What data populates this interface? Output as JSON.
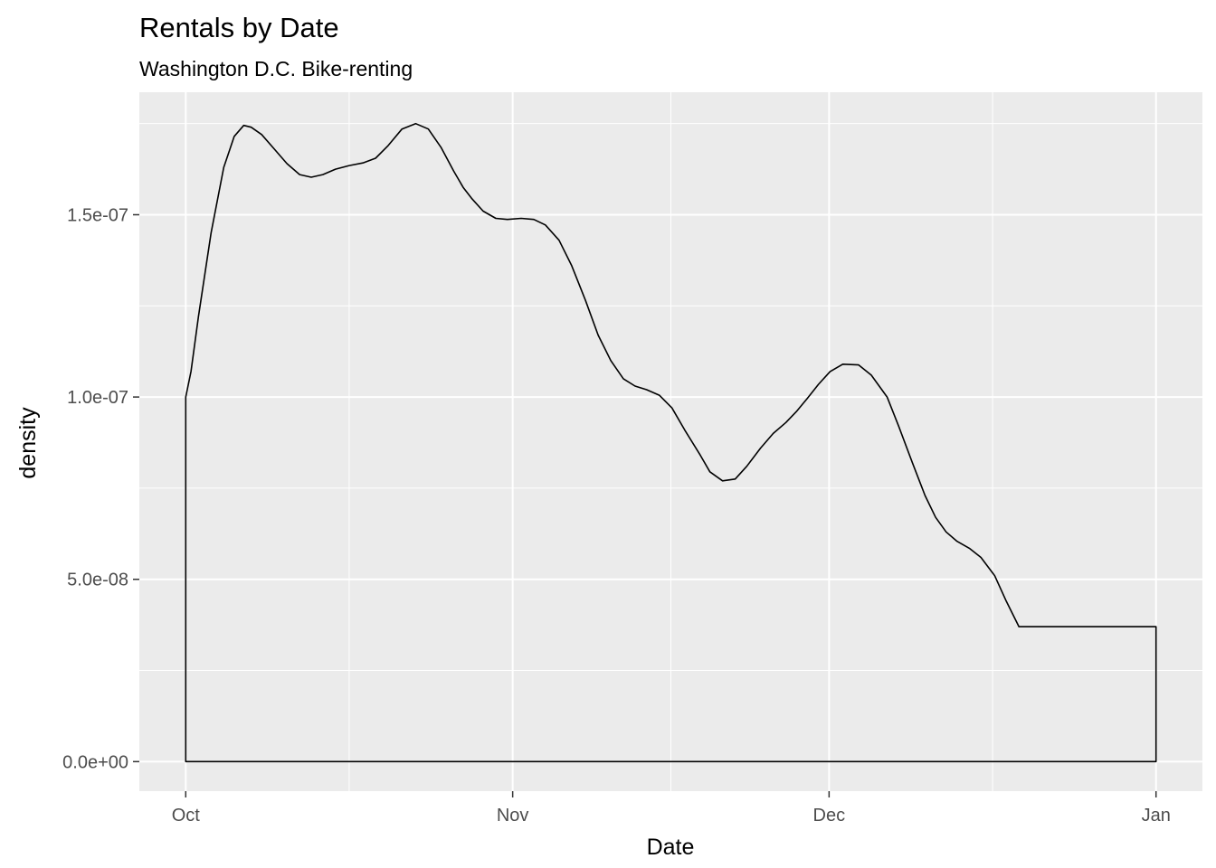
{
  "chart_data": {
    "type": "area",
    "title": "Rentals by Date",
    "subtitle": "Washington D.C. Bike-renting",
    "xlabel": "Date",
    "ylabel": "density",
    "x_ticks": [
      {
        "label": "Oct",
        "day": 0
      },
      {
        "label": "Nov",
        "day": 31
      },
      {
        "label": "Dec",
        "day": 61
      },
      {
        "label": "Jan",
        "day": 92
      }
    ],
    "x_minor_days": [
      15.5,
      46,
      76.5
    ],
    "xlim": [
      -4.4,
      96.4
    ],
    "y_ticks": [
      {
        "label": "0.0e+00",
        "value": 0
      },
      {
        "label": "5.0e-08",
        "value": 5e-08
      },
      {
        "label": "1.0e-07",
        "value": 1e-07
      },
      {
        "label": "1.5e-07",
        "value": 1.5e-07
      }
    ],
    "y_minor": [
      2.5e-08,
      7.5e-08,
      1.25e-07,
      1.75e-07
    ],
    "ylim": [
      -8.1e-09,
      1.836e-07
    ],
    "grid": true,
    "legend": "none",
    "fill": "none",
    "line_color": "#000000",
    "panel_color": "#ebebeb",
    "grid_color": "#ffffff",
    "series": [
      {
        "x": [
          0,
          0.5,
          1.2,
          2.4,
          3.6,
          4.6,
          5.5,
          6.2,
          7.2,
          8.4,
          9.6,
          10.8,
          11.9,
          13.0,
          14.2,
          15.5,
          16.8,
          18.0,
          19.2,
          20.5,
          21.8,
          23.0,
          24.2,
          25.4,
          26.3,
          27.1,
          28.2,
          29.4,
          30.5,
          31.8,
          33.0,
          34.1,
          35.4,
          36.6,
          37.9,
          39.1,
          40.3,
          41.5,
          42.6,
          43.7,
          44.9,
          46.1,
          47.3,
          48.8,
          49.7,
          50.9,
          52.1,
          53.2,
          54.5,
          55.7,
          56.9,
          57.9,
          58.9,
          60.0,
          61.1,
          62.3,
          63.8,
          65.0,
          66.5,
          67.6,
          68.9,
          70.1,
          71.1,
          72.1,
          73.1,
          74.3,
          75.4,
          76.7,
          77.8,
          79.0,
          80.2,
          81.4,
          82.6,
          83.8,
          85.1,
          86.3,
          87.5,
          88.7,
          89.9,
          91.0,
          91.5,
          92.0
        ],
        "y": [
          1e-07,
          1.07e-07,
          1.22e-07,
          1.45e-07,
          1.63e-07,
          1.715e-07,
          1.745e-07,
          1.74e-07,
          1.72e-07,
          1.68e-07,
          1.64e-07,
          1.61e-07,
          1.603e-07,
          1.61e-07,
          1.625e-07,
          1.635e-07,
          1.642e-07,
          1.655e-07,
          1.69e-07,
          1.735e-07,
          1.75e-07,
          1.735e-07,
          1.685e-07,
          1.62e-07,
          1.575e-07,
          1.545e-07,
          1.51e-07,
          1.49e-07,
          1.487e-07,
          1.49e-07,
          1.487e-07,
          1.472e-07,
          1.43e-07,
          1.36e-07,
          1.265e-07,
          1.17e-07,
          1.1e-07,
          1.05e-07,
          1.03e-07,
          1.02e-07,
          1.005e-07,
          9.7e-08,
          9.1e-08,
          8.4e-08,
          7.95e-08,
          7.7e-08,
          7.75e-08,
          8.1e-08,
          8.6e-08,
          9e-08,
          9.3e-08,
          9.6e-08,
          9.95e-08,
          1.035e-07,
          1.07e-07,
          1.09e-07,
          1.088e-07,
          1.06e-07,
          1e-07,
          9.2e-08,
          8.2e-08,
          7.3e-08,
          6.7e-08,
          6.3e-08,
          6.05e-08,
          5.85e-08,
          5.6e-08,
          5.1e-08,
          4.4e-08,
          3.7e-08,
          3.7e-08,
          3.7e-08,
          3.7e-08,
          3.7e-08,
          3.7e-08,
          3.7e-08,
          3.7e-08,
          3.7e-08,
          3.7e-08,
          3.7e-08,
          3.7e-08,
          3.7e-08
        ]
      }
    ]
  }
}
